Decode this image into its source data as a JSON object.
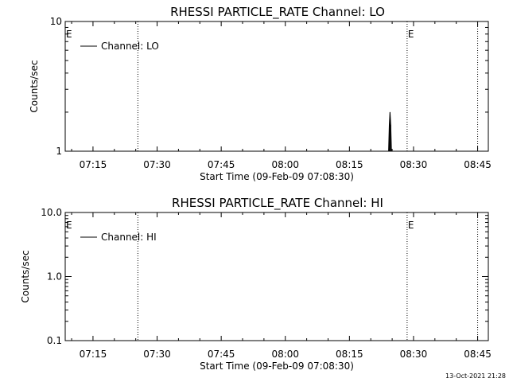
{
  "footer_timestamp": "13-Oct-2021 21:28",
  "chart_data": [
    {
      "type": "line",
      "title": "RHESSI PARTICLE_RATE Channel: LO",
      "xlabel": "Start Time (09-Feb-09 07:08:30)",
      "ylabel": "Counts/sec",
      "yscale": "log",
      "ylim": [
        1,
        10
      ],
      "xlim": [
        "07:08:30",
        "08:47:30"
      ],
      "x_tick_labels": [
        "07:15",
        "07:30",
        "07:45",
        "08:00",
        "08:15",
        "08:30",
        "08:45"
      ],
      "x_tick_values": [
        "07:15",
        "07:30",
        "07:45",
        "08:00",
        "08:15",
        "08:30",
        "08:45"
      ],
      "y_tick_labels": [
        "1",
        "10"
      ],
      "y_tick_values": [
        1,
        10
      ],
      "legend": {
        "entries": [
          "Channel: LO"
        ],
        "position": "top-left"
      },
      "markers": [
        {
          "label": "E",
          "time": "07:08:30"
        },
        {
          "label": "",
          "time": "07:25:30"
        },
        {
          "label": "E",
          "time": "08:28:30"
        },
        {
          "label": "",
          "time": "08:45:00"
        }
      ],
      "series": [
        {
          "name": "Channel: LO",
          "points": [
            {
              "x": "08:24:10",
              "y": 1.0
            },
            {
              "x": "08:24:20",
              "y": 1.6
            },
            {
              "x": "08:24:30",
              "y": 2.0
            },
            {
              "x": "08:24:40",
              "y": 1.6
            },
            {
              "x": "08:24:50",
              "y": 1.0
            }
          ]
        }
      ]
    },
    {
      "type": "line",
      "title": "RHESSI PARTICLE_RATE Channel: HI",
      "xlabel": "Start Time (09-Feb-09 07:08:30)",
      "ylabel": "Counts/sec",
      "yscale": "log",
      "ylim": [
        0.1,
        10
      ],
      "xlim": [
        "07:08:30",
        "08:47:30"
      ],
      "x_tick_labels": [
        "07:15",
        "07:30",
        "07:45",
        "08:00",
        "08:15",
        "08:30",
        "08:45"
      ],
      "x_tick_values": [
        "07:15",
        "07:30",
        "07:45",
        "08:00",
        "08:15",
        "08:30",
        "08:45"
      ],
      "y_tick_labels": [
        "0.1",
        "1.0",
        "10.0"
      ],
      "y_tick_values": [
        0.1,
        1,
        10
      ],
      "legend": {
        "entries": [
          "Channel: HI"
        ],
        "position": "top-left"
      },
      "markers": [
        {
          "label": "E",
          "time": "07:08:30"
        },
        {
          "label": "",
          "time": "07:25:30"
        },
        {
          "label": "E",
          "time": "08:28:30"
        },
        {
          "label": "",
          "time": "08:45:00"
        }
      ],
      "series": [
        {
          "name": "Channel: HI",
          "points": []
        }
      ]
    }
  ]
}
